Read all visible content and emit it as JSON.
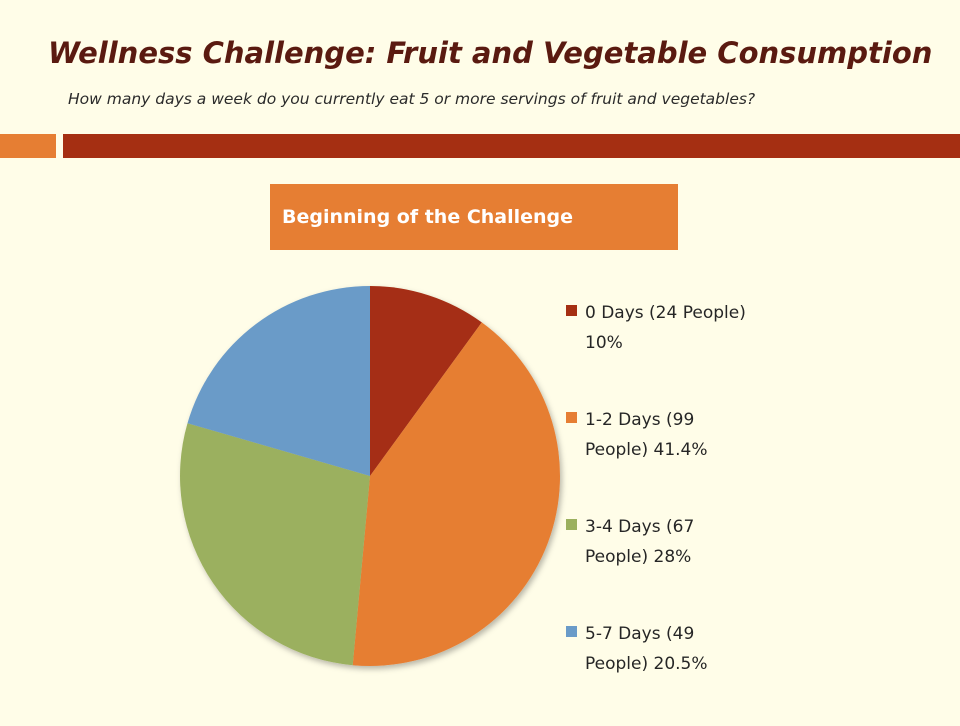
{
  "slide": {
    "title": "Wellness Challenge: Fruit and Vegetable Consumption",
    "subtitle": "How many days a week do you currently eat 5 or more servings of fruit and vegetables?"
  },
  "colors": {
    "background": "#fffde8",
    "title": "#5a1a10",
    "accent_light": "#e67e33",
    "accent_dark": "#a52f12",
    "header_bg": "#e67e33"
  },
  "chart_data": {
    "type": "pie",
    "title": "Beginning of the Challenge",
    "start_angle_deg": 0,
    "direction": "clockwise",
    "legend_position": "right",
    "slices": [
      {
        "label": "0 Days (24 People) 10%",
        "category": "0 Days",
        "people": 24,
        "value": 10,
        "color": "#a52f12"
      },
      {
        "label": "1-2 Days (99 People) 41.4%",
        "category": "1-2 Days",
        "people": 99,
        "value": 41.4,
        "color": "#e67e33"
      },
      {
        "label": "3-4 Days (67 People) 28%",
        "category": "3-4 Days",
        "people": 67,
        "value": 28,
        "color": "#9bb05e"
      },
      {
        "label": "5-7 Days (49 People) 20.5%",
        "category": "5-7 Days",
        "people": 49,
        "value": 20.5,
        "color": "#6a9bc8"
      }
    ]
  }
}
